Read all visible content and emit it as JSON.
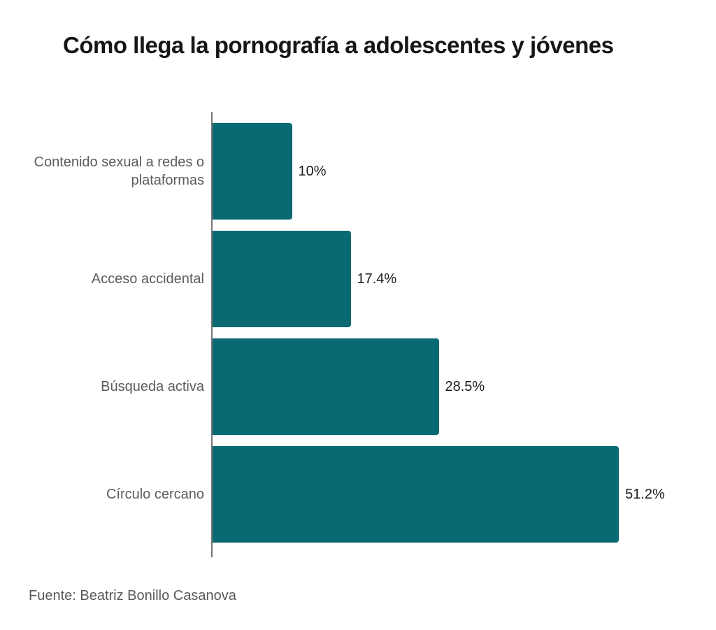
{
  "source": "Fuente: Beatriz Bonillo Casanova",
  "chart_data": {
    "type": "bar",
    "orientation": "horizontal",
    "title": "Cómo llega la pornografía a adolescentes y jóvenes",
    "categories": [
      "Contenido sexual a redes o plataformas",
      "Acceso accidental",
      "Búsqueda activa",
      "Círculo cercano"
    ],
    "values": [
      10,
      17.4,
      28.5,
      51.2
    ],
    "value_labels": [
      "10%",
      "17.4%",
      "28.5%",
      "51.2%"
    ],
    "xlabel": "",
    "ylabel": "",
    "xlim": [
      0,
      62
    ],
    "grid": false,
    "legend": false,
    "bar_color": "#0a6a73",
    "axis_color": "#757575"
  }
}
